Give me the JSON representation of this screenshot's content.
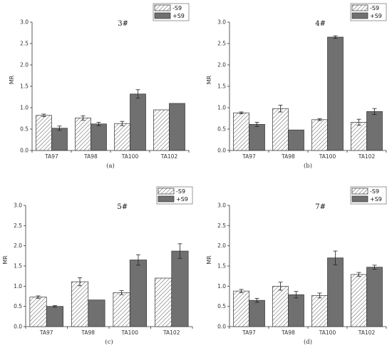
{
  "chart_data": [
    {
      "type": "bar",
      "title": "3#",
      "panel_label": "(a)",
      "ylabel": "MR",
      "categories": [
        "TA97",
        "TA98",
        "TA100",
        "TA102"
      ],
      "ylim": [
        0,
        3.0
      ],
      "yticks": [
        "0.0",
        "0.5",
        "1.0",
        "1.5",
        "2.0",
        "2.5",
        "3.0"
      ],
      "legend": "top-right",
      "series": [
        {
          "name": "-S9",
          "values": [
            0.82,
            0.76,
            0.63,
            0.95
          ],
          "errors": [
            0.03,
            0.05,
            0.05,
            0.0
          ]
        },
        {
          "name": "+S9",
          "values": [
            0.52,
            0.62,
            1.32,
            1.1
          ],
          "errors": [
            0.05,
            0.04,
            0.1,
            0.0
          ]
        }
      ]
    },
    {
      "type": "bar",
      "title": "4#",
      "panel_label": "(b)",
      "ylabel": "MR",
      "categories": [
        "TA97",
        "TA98",
        "TA100",
        "TA102"
      ],
      "ylim": [
        0,
        3.0
      ],
      "yticks": [
        "0.0",
        "0.5",
        "1.0",
        "1.5",
        "2.0",
        "2.5",
        "3.0"
      ],
      "legend": "top-right",
      "series": [
        {
          "name": "-S9",
          "values": [
            0.88,
            0.98,
            0.72,
            0.66
          ],
          "errors": [
            0.02,
            0.08,
            0.02,
            0.07
          ]
        },
        {
          "name": "+S9",
          "values": [
            0.61,
            0.48,
            2.65,
            0.91
          ],
          "errors": [
            0.05,
            0.0,
            0.03,
            0.07
          ]
        }
      ]
    },
    {
      "type": "bar",
      "title": "5#",
      "panel_label": "(c)",
      "ylabel": "MR",
      "categories": [
        "TA97",
        "TA98",
        "TA100",
        "TA102"
      ],
      "ylim": [
        0,
        3.0
      ],
      "yticks": [
        "0.0",
        "0.5",
        "1.0",
        "1.5",
        "2.0",
        "2.5",
        "3.0"
      ],
      "legend": "top-right",
      "series": [
        {
          "name": "-S9",
          "values": [
            0.73,
            1.11,
            0.84,
            1.2
          ],
          "errors": [
            0.03,
            0.1,
            0.05,
            0.0
          ]
        },
        {
          "name": "+S9",
          "values": [
            0.5,
            0.66,
            1.65,
            1.87
          ],
          "errors": [
            0.02,
            0.0,
            0.13,
            0.18
          ]
        }
      ]
    },
    {
      "type": "bar",
      "title": "7#",
      "panel_label": "(d)",
      "ylabel": "MR",
      "categories": [
        "TA97",
        "TA98",
        "TA100",
        "TA102"
      ],
      "ylim": [
        0,
        3.0
      ],
      "yticks": [
        "0.0",
        "0.5",
        "1.0",
        "1.5",
        "2.0",
        "2.5",
        "3.0"
      ],
      "legend": "top-right",
      "series": [
        {
          "name": "-S9",
          "values": [
            0.88,
            1.0,
            0.77,
            1.29
          ],
          "errors": [
            0.04,
            0.1,
            0.06,
            0.05
          ]
        },
        {
          "name": "+S9",
          "values": [
            0.65,
            0.79,
            1.7,
            1.47
          ],
          "errors": [
            0.05,
            0.08,
            0.17,
            0.05
          ]
        }
      ]
    }
  ]
}
